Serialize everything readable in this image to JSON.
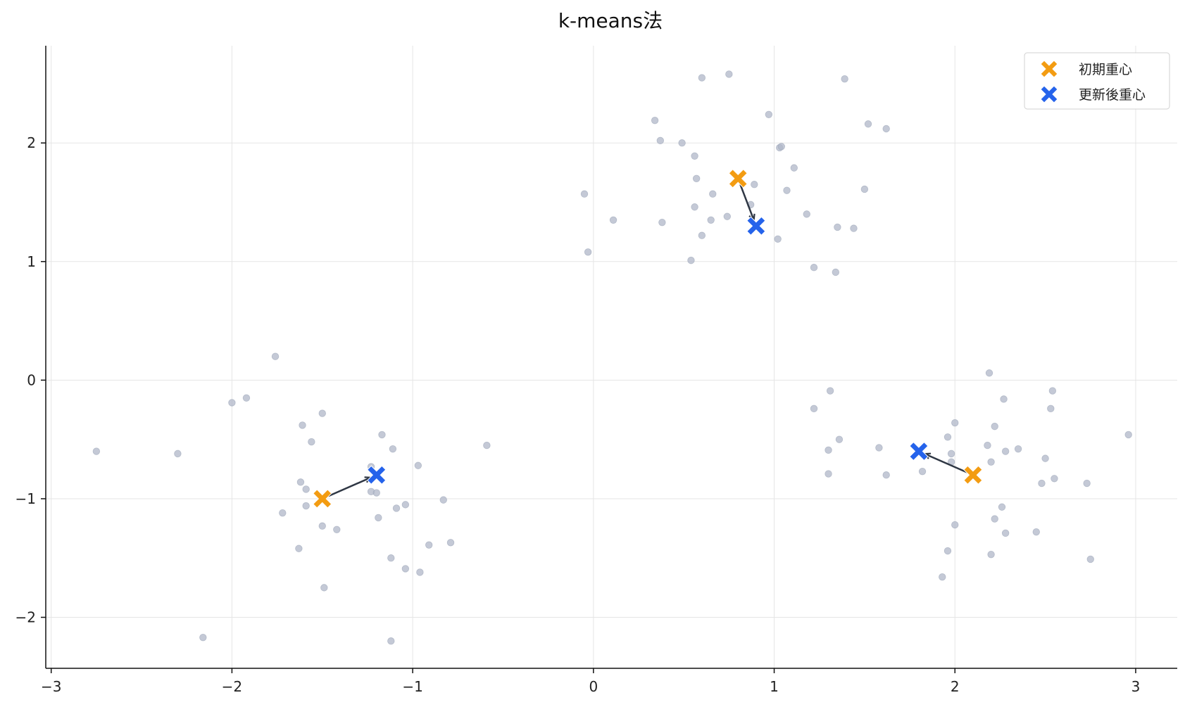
{
  "colors": {
    "initial": "#f39c12",
    "updated": "#2563eb",
    "point": "#b0b7c8",
    "arrow": "#2f3744"
  },
  "chart_data": {
    "type": "scatter",
    "title": "k-means法",
    "xlabel": "",
    "ylabel": "",
    "xlim": [
      -3.03,
      3.23
    ],
    "ylim": [
      -2.43,
      2.82
    ],
    "xticks": [
      -3,
      -2,
      -1,
      0,
      1,
      2,
      3
    ],
    "xtick_labels": [
      "−3",
      "−2",
      "−1",
      "0",
      "1",
      "2",
      "3"
    ],
    "yticks": [
      -2,
      -1,
      0,
      1,
      2
    ],
    "ytick_labels": [
      "−2",
      "−1",
      "0",
      "1",
      "2"
    ],
    "grid": true,
    "legend_position": "top-right",
    "legend": [
      {
        "label": "初期重心",
        "marker": "X",
        "color_key": "initial"
      },
      {
        "label": "更新後重心",
        "marker": "X",
        "color_key": "updated"
      }
    ],
    "points": [
      {
        "x": 0.6,
        "y": 2.55
      },
      {
        "x": 0.75,
        "y": 2.58
      },
      {
        "x": 1.39,
        "y": 2.54
      },
      {
        "x": 0.97,
        "y": 2.24
      },
      {
        "x": 0.34,
        "y": 2.19
      },
      {
        "x": 1.52,
        "y": 2.16
      },
      {
        "x": 1.62,
        "y": 2.12
      },
      {
        "x": 0.37,
        "y": 2.02
      },
      {
        "x": 0.49,
        "y": 2.0
      },
      {
        "x": 1.03,
        "y": 1.96
      },
      {
        "x": 1.04,
        "y": 1.97
      },
      {
        "x": 0.56,
        "y": 1.89
      },
      {
        "x": 1.11,
        "y": 1.79
      },
      {
        "x": 0.57,
        "y": 1.7
      },
      {
        "x": 0.89,
        "y": 1.65
      },
      {
        "x": 1.5,
        "y": 1.61
      },
      {
        "x": 1.07,
        "y": 1.6
      },
      {
        "x": 0.66,
        "y": 1.57
      },
      {
        "x": -0.05,
        "y": 1.57
      },
      {
        "x": 0.56,
        "y": 1.46
      },
      {
        "x": 0.87,
        "y": 1.48
      },
      {
        "x": 1.18,
        "y": 1.4
      },
      {
        "x": 0.74,
        "y": 1.38
      },
      {
        "x": 0.11,
        "y": 1.35
      },
      {
        "x": 0.65,
        "y": 1.35
      },
      {
        "x": 0.38,
        "y": 1.33
      },
      {
        "x": 1.35,
        "y": 1.29
      },
      {
        "x": 1.44,
        "y": 1.28
      },
      {
        "x": 0.6,
        "y": 1.22
      },
      {
        "x": 1.02,
        "y": 1.19
      },
      {
        "x": -0.03,
        "y": 1.08
      },
      {
        "x": 0.54,
        "y": 1.01
      },
      {
        "x": 1.22,
        "y": 0.95
      },
      {
        "x": 1.34,
        "y": 0.91
      },
      {
        "x": -1.76,
        "y": 0.2
      },
      {
        "x": -1.92,
        "y": -0.15
      },
      {
        "x": -2.0,
        "y": -0.19
      },
      {
        "x": -1.5,
        "y": -0.28
      },
      {
        "x": -1.61,
        "y": -0.38
      },
      {
        "x": -1.17,
        "y": -0.46
      },
      {
        "x": -1.56,
        "y": -0.52
      },
      {
        "x": -0.59,
        "y": -0.55
      },
      {
        "x": -1.11,
        "y": -0.58
      },
      {
        "x": -2.75,
        "y": -0.6
      },
      {
        "x": -2.3,
        "y": -0.62
      },
      {
        "x": -0.97,
        "y": -0.72
      },
      {
        "x": -1.23,
        "y": -0.73
      },
      {
        "x": -1.62,
        "y": -0.86
      },
      {
        "x": -1.59,
        "y": -0.92
      },
      {
        "x": -1.23,
        "y": -0.94
      },
      {
        "x": -1.2,
        "y": -0.95
      },
      {
        "x": -0.83,
        "y": -1.01
      },
      {
        "x": -1.04,
        "y": -1.05
      },
      {
        "x": -1.59,
        "y": -1.06
      },
      {
        "x": -1.09,
        "y": -1.08
      },
      {
        "x": -1.72,
        "y": -1.12
      },
      {
        "x": -1.19,
        "y": -1.16
      },
      {
        "x": -1.5,
        "y": -1.23
      },
      {
        "x": -1.42,
        "y": -1.26
      },
      {
        "x": -0.79,
        "y": -1.37
      },
      {
        "x": -0.91,
        "y": -1.39
      },
      {
        "x": -1.63,
        "y": -1.42
      },
      {
        "x": -1.12,
        "y": -1.5
      },
      {
        "x": -1.04,
        "y": -1.59
      },
      {
        "x": -0.96,
        "y": -1.62
      },
      {
        "x": -1.49,
        "y": -1.75
      },
      {
        "x": -2.16,
        "y": -2.17
      },
      {
        "x": -1.12,
        "y": -2.2
      },
      {
        "x": 2.19,
        "y": 0.06
      },
      {
        "x": 1.31,
        "y": -0.09
      },
      {
        "x": 2.54,
        "y": -0.09
      },
      {
        "x": 2.27,
        "y": -0.16
      },
      {
        "x": 1.22,
        "y": -0.24
      },
      {
        "x": 2.53,
        "y": -0.24
      },
      {
        "x": 2.0,
        "y": -0.36
      },
      {
        "x": 2.22,
        "y": -0.39
      },
      {
        "x": 1.96,
        "y": -0.48
      },
      {
        "x": 1.36,
        "y": -0.5
      },
      {
        "x": 2.18,
        "y": -0.55
      },
      {
        "x": 1.58,
        "y": -0.57
      },
      {
        "x": 2.35,
        "y": -0.58
      },
      {
        "x": 1.3,
        "y": -0.59
      },
      {
        "x": 2.28,
        "y": -0.6
      },
      {
        "x": 1.98,
        "y": -0.62
      },
      {
        "x": 2.96,
        "y": -0.46
      },
      {
        "x": 2.5,
        "y": -0.66
      },
      {
        "x": 2.2,
        "y": -0.69
      },
      {
        "x": 1.98,
        "y": -0.69
      },
      {
        "x": 1.82,
        "y": -0.77
      },
      {
        "x": 1.3,
        "y": -0.79
      },
      {
        "x": 1.62,
        "y": -0.8
      },
      {
        "x": 2.55,
        "y": -0.83
      },
      {
        "x": 2.73,
        "y": -0.87
      },
      {
        "x": 2.48,
        "y": -0.87
      },
      {
        "x": 2.26,
        "y": -1.07
      },
      {
        "x": 2.22,
        "y": -1.17
      },
      {
        "x": 2.0,
        "y": -1.22
      },
      {
        "x": 2.45,
        "y": -1.28
      },
      {
        "x": 2.28,
        "y": -1.29
      },
      {
        "x": 1.96,
        "y": -1.44
      },
      {
        "x": 2.2,
        "y": -1.47
      },
      {
        "x": 2.75,
        "y": -1.51
      },
      {
        "x": 1.93,
        "y": -1.66
      }
    ],
    "centroids_initial": [
      {
        "x": -1.5,
        "y": -1.0
      },
      {
        "x": 0.8,
        "y": 1.7
      },
      {
        "x": 2.1,
        "y": -0.8
      }
    ],
    "centroids_updated": [
      {
        "x": -1.2,
        "y": -0.8
      },
      {
        "x": 0.9,
        "y": 1.3
      },
      {
        "x": 1.8,
        "y": -0.6
      }
    ]
  }
}
